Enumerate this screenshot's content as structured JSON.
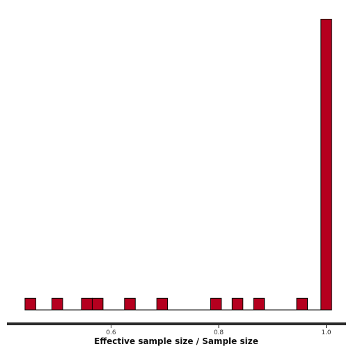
{
  "chart_data": {
    "type": "bar",
    "xlabel": "Effective sample size / Sample size",
    "ylabel": "",
    "title": "",
    "xlim": [
      0.43,
      1.04
    ],
    "ylim": [
      0,
      28
    ],
    "x_ticks": [
      {
        "value": 0.6,
        "label": "0.6"
      },
      {
        "value": 0.8,
        "label": "0.8"
      },
      {
        "value": 1.0,
        "label": "1.0"
      }
    ],
    "bin_width": 0.02,
    "bins": [
      {
        "x": 0.45,
        "count": 1
      },
      {
        "x": 0.5,
        "count": 1
      },
      {
        "x": 0.555,
        "count": 1
      },
      {
        "x": 0.575,
        "count": 1
      },
      {
        "x": 0.635,
        "count": 1
      },
      {
        "x": 0.695,
        "count": 1
      },
      {
        "x": 0.795,
        "count": 1
      },
      {
        "x": 0.835,
        "count": 1
      },
      {
        "x": 0.875,
        "count": 1
      },
      {
        "x": 0.955,
        "count": 1
      },
      {
        "x": 1.0,
        "count": 25
      }
    ],
    "grid": false,
    "colors": {
      "bar_fill": "#b5001f",
      "bar_stroke": "#000000",
      "baseline": "#000000",
      "axis_line": "#2b2b2b"
    }
  }
}
